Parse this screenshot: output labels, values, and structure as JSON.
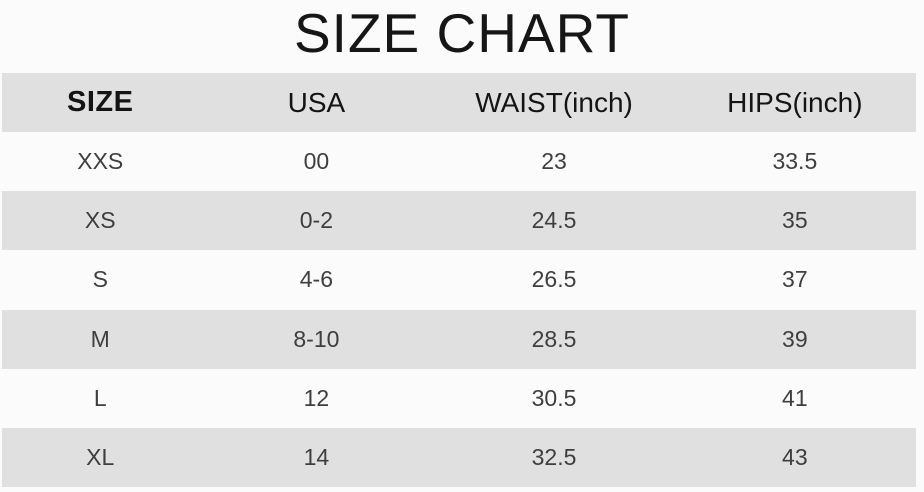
{
  "title": "SIZE CHART",
  "colors": {
    "base_bg": "#fbfbfb",
    "header_row_bg": "#e0e0e0",
    "alt_row_bg": "#e0e0e0",
    "title_text": "#161616",
    "header_text": "#141414",
    "data_text": "#3e3e3e"
  },
  "chart_data": {
    "type": "table",
    "title": "SIZE CHART",
    "columns": [
      "SIZE",
      "USA",
      "WAIST(inch)",
      "HIPS(inch)"
    ],
    "rows": [
      [
        "XXS",
        "00",
        "23",
        "33.5"
      ],
      [
        "XS",
        "0-2",
        "24.5",
        "35"
      ],
      [
        "S",
        "4-6",
        "26.5",
        "37"
      ],
      [
        "M",
        "8-10",
        "28.5",
        "39"
      ],
      [
        "L",
        "12",
        "30.5",
        "41"
      ],
      [
        "XL",
        "14",
        "32.5",
        "43"
      ]
    ],
    "layout": {
      "striped": true,
      "stripe_pattern": "header gray, then rows alternate white/gray starting white",
      "column_alignment": "center"
    }
  }
}
